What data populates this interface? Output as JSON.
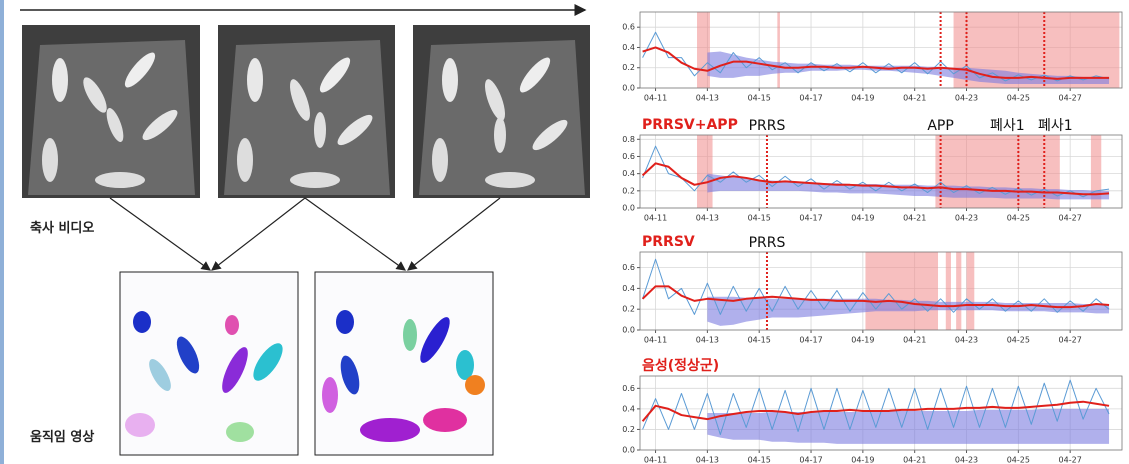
{
  "figure": {
    "labels": [
      "축사 비디오",
      "움직임 영상"
    ]
  },
  "chart_data": [
    {
      "type": "line",
      "x": [
        10.5,
        11,
        11.5,
        12,
        12.5,
        13,
        13.5,
        14,
        14.5,
        15,
        15.5,
        16,
        16.5,
        17,
        17.5,
        18,
        18.5,
        19,
        19.5,
        20,
        20.5,
        21,
        21.5,
        22,
        22.5,
        23,
        23.5,
        24,
        24.5,
        25,
        25.5,
        26,
        26.5,
        27,
        27.5,
        28,
        28.5
      ],
      "series": [
        {
          "color": "#5b9bd5",
          "values": [
            0.3,
            0.55,
            0.3,
            0.3,
            0.12,
            0.25,
            0.15,
            0.35,
            0.2,
            0.3,
            0.18,
            0.25,
            0.15,
            0.25,
            0.17,
            0.24,
            0.16,
            0.25,
            0.15,
            0.24,
            0.15,
            0.25,
            0.14,
            0.26,
            0.14,
            0.22,
            0.1,
            0.15,
            0.07,
            0.13,
            0.08,
            0.13,
            0.07,
            0.12,
            0.08,
            0.12,
            0.09
          ]
        },
        {
          "color": "#e0201b",
          "values": [
            0.36,
            0.4,
            0.35,
            0.25,
            0.19,
            0.17,
            0.22,
            0.26,
            0.26,
            0.24,
            0.22,
            0.2,
            0.2,
            0.21,
            0.21,
            0.2,
            0.2,
            0.21,
            0.2,
            0.19,
            0.2,
            0.2,
            0.19,
            0.2,
            0.19,
            0.18,
            0.14,
            0.11,
            0.1,
            0.1,
            0.11,
            0.1,
            0.09,
            0.1,
            0.1,
            0.1,
            0.1
          ]
        }
      ],
      "band": {
        "color": "#7b7be0",
        "lower": [
          null,
          null,
          null,
          null,
          null,
          0.12,
          0.1,
          0.1,
          0.12,
          0.12,
          0.14,
          0.15,
          0.15,
          0.17,
          0.17,
          0.17,
          0.18,
          0.18,
          0.17,
          0.17,
          0.16,
          0.15,
          0.14,
          0.12,
          0.1,
          0.08,
          0.06,
          0.05,
          0.04,
          0.04,
          0.04,
          0.04,
          0.04,
          0.04,
          0.04,
          0.04,
          0.04
        ],
        "upper": [
          null,
          null,
          null,
          null,
          null,
          0.35,
          0.36,
          0.33,
          0.3,
          0.28,
          0.26,
          0.25,
          0.24,
          0.24,
          0.23,
          0.23,
          0.23,
          0.22,
          0.22,
          0.22,
          0.22,
          0.22,
          0.21,
          0.21,
          0.2,
          0.2,
          0.19,
          0.18,
          0.17,
          0.15,
          0.14,
          0.13,
          0.12,
          0.12,
          0.11,
          0.11,
          0.11
        ]
      },
      "regions": [
        [
          12.6,
          13.1
        ],
        [
          15.7,
          15.8
        ],
        [
          22.5,
          28.9
        ]
      ],
      "events": [
        {
          "x": 22
        },
        {
          "x": 23
        },
        {
          "x": 26
        }
      ],
      "xlim": [
        10.4,
        29
      ],
      "xticks": [
        {
          "value": 11,
          "label": "04-11"
        },
        {
          "value": 13,
          "label": "04-13"
        },
        {
          "value": 15,
          "label": "04-15"
        },
        {
          "value": 17,
          "label": "04-17"
        },
        {
          "value": 19,
          "label": "04-19"
        },
        {
          "value": 21,
          "label": "04-21"
        },
        {
          "value": 23,
          "label": "04-23"
        },
        {
          "value": 25,
          "label": "04-25"
        },
        {
          "value": 27,
          "label": "04-27"
        }
      ],
      "ylim": [
        0,
        0.75
      ],
      "yticks": [
        {
          "value": 0,
          "label": "0.0"
        },
        0.2,
        0.4,
        0.6
      ],
      "grid": true
    },
    {
      "type": "line",
      "title": "PRRSV+APP",
      "x": [
        10.5,
        11,
        11.5,
        12,
        12.5,
        13,
        13.5,
        14,
        14.5,
        15,
        15.5,
        16,
        16.5,
        17,
        17.5,
        18,
        18.5,
        19,
        19.5,
        20,
        20.5,
        21,
        21.5,
        22,
        22.5,
        23,
        23.5,
        24,
        24.5,
        25,
        25.5,
        26,
        26.5,
        27,
        27.5,
        28,
        28.5
      ],
      "series": [
        {
          "color": "#5b9bd5",
          "values": [
            0.35,
            0.72,
            0.4,
            0.35,
            0.2,
            0.38,
            0.3,
            0.42,
            0.3,
            0.38,
            0.25,
            0.37,
            0.25,
            0.34,
            0.22,
            0.32,
            0.22,
            0.3,
            0.2,
            0.3,
            0.2,
            0.28,
            0.18,
            0.3,
            0.18,
            0.26,
            0.17,
            0.24,
            0.16,
            0.23,
            0.15,
            0.22,
            0.14,
            0.2,
            0.13,
            0.2,
            0.22
          ]
        },
        {
          "color": "#e0201b",
          "values": [
            0.38,
            0.52,
            0.48,
            0.35,
            0.27,
            0.3,
            0.35,
            0.37,
            0.35,
            0.32,
            0.3,
            0.31,
            0.3,
            0.29,
            0.28,
            0.27,
            0.27,
            0.26,
            0.26,
            0.25,
            0.24,
            0.24,
            0.23,
            0.24,
            0.22,
            0.22,
            0.21,
            0.2,
            0.2,
            0.19,
            0.19,
            0.18,
            0.18,
            0.17,
            0.16,
            0.16,
            0.17
          ]
        }
      ],
      "band": {
        "color": "#7b7be0",
        "lower": [
          null,
          null,
          null,
          null,
          null,
          0.18,
          0.2,
          0.2,
          0.2,
          0.2,
          0.2,
          0.2,
          0.2,
          0.19,
          0.18,
          0.18,
          0.17,
          0.17,
          0.17,
          0.16,
          0.15,
          0.14,
          0.14,
          0.13,
          0.12,
          0.12,
          0.12,
          0.12,
          0.11,
          0.11,
          0.11,
          0.11,
          0.1,
          0.1,
          0.1,
          0.1,
          0.1
        ],
        "upper": [
          null,
          null,
          null,
          null,
          null,
          0.4,
          0.38,
          0.36,
          0.35,
          0.33,
          0.32,
          0.31,
          0.3,
          0.3,
          0.29,
          0.29,
          0.28,
          0.28,
          0.28,
          0.27,
          0.27,
          0.27,
          0.26,
          0.26,
          0.26,
          0.25,
          0.25,
          0.24,
          0.24,
          0.23,
          0.23,
          0.22,
          0.22,
          0.21,
          0.21,
          0.2,
          0.2
        ]
      },
      "regions": [
        [
          12.6,
          13.2
        ],
        [
          21.8,
          26.6
        ],
        [
          27.8,
          28.2
        ]
      ],
      "events": [
        {
          "x": 15.3,
          "label": "PRRS"
        },
        {
          "x": 22,
          "label": "APP"
        },
        {
          "x": 25,
          "label": "폐사1"
        },
        {
          "x": 26,
          "label": "폐사1"
        }
      ],
      "xlim": [
        10.4,
        29
      ],
      "xticks": [
        {
          "value": 11,
          "label": "04-11"
        },
        {
          "value": 13,
          "label": "04-13"
        },
        {
          "value": 15,
          "label": "04-15"
        },
        {
          "value": 17,
          "label": "04-17"
        },
        {
          "value": 19,
          "label": "04-19"
        },
        {
          "value": 21,
          "label": "04-21"
        },
        {
          "value": 23,
          "label": "04-23"
        },
        {
          "value": 25,
          "label": "04-25"
        },
        {
          "value": 27,
          "label": "04-27"
        }
      ],
      "ylim": [
        0,
        0.85
      ],
      "yticks": [
        {
          "value": 0,
          "label": "0.0"
        },
        0.2,
        0.4,
        0.6,
        0.8
      ],
      "grid": true
    },
    {
      "type": "line",
      "title": "PRRSV",
      "x": [
        10.5,
        11,
        11.5,
        12,
        12.5,
        13,
        13.5,
        14,
        14.5,
        15,
        15.5,
        16,
        16.5,
        17,
        17.5,
        18,
        18.5,
        19,
        19.5,
        20,
        20.5,
        21,
        21.5,
        22,
        22.5,
        23,
        23.5,
        24,
        24.5,
        25,
        25.5,
        26,
        26.5,
        27,
        27.5,
        28,
        28.5
      ],
      "series": [
        {
          "color": "#5b9bd5",
          "values": [
            0.3,
            0.68,
            0.3,
            0.4,
            0.15,
            0.45,
            0.15,
            0.42,
            0.18,
            0.4,
            0.18,
            0.42,
            0.2,
            0.38,
            0.2,
            0.38,
            0.18,
            0.36,
            0.2,
            0.35,
            0.2,
            0.3,
            0.18,
            0.3,
            0.17,
            0.3,
            0.2,
            0.3,
            0.18,
            0.28,
            0.18,
            0.3,
            0.17,
            0.28,
            0.18,
            0.3,
            0.2
          ]
        },
        {
          "color": "#e0201b",
          "values": [
            0.3,
            0.42,
            0.42,
            0.33,
            0.28,
            0.3,
            0.29,
            0.28,
            0.3,
            0.31,
            0.32,
            0.31,
            0.3,
            0.29,
            0.29,
            0.28,
            0.28,
            0.28,
            0.27,
            0.28,
            0.27,
            0.25,
            0.24,
            0.23,
            0.23,
            0.24,
            0.24,
            0.24,
            0.23,
            0.23,
            0.24,
            0.23,
            0.22,
            0.22,
            0.23,
            0.25,
            0.24
          ]
        }
      ],
      "band": {
        "color": "#7b7be0",
        "lower": [
          null,
          null,
          null,
          null,
          null,
          0.08,
          0.04,
          0.05,
          0.08,
          0.1,
          0.12,
          0.12,
          0.12,
          0.13,
          0.14,
          0.15,
          0.16,
          0.17,
          0.18,
          0.18,
          0.18,
          0.18,
          0.19,
          0.19,
          0.19,
          0.19,
          0.19,
          0.19,
          0.18,
          0.18,
          0.18,
          0.18,
          0.17,
          0.17,
          0.17,
          0.16,
          0.16
        ],
        "upper": [
          null,
          null,
          null,
          null,
          null,
          0.32,
          0.32,
          0.32,
          0.31,
          0.31,
          0.3,
          0.3,
          0.3,
          0.3,
          0.3,
          0.3,
          0.3,
          0.3,
          0.3,
          0.29,
          0.29,
          0.28,
          0.28,
          0.27,
          0.27,
          0.27,
          0.27,
          0.27,
          0.26,
          0.26,
          0.26,
          0.26,
          0.26,
          0.26,
          0.25,
          0.25,
          0.25
        ]
      },
      "regions": [
        [
          19.1,
          21.9
        ],
        [
          22.2,
          22.4
        ],
        [
          22.6,
          22.8
        ],
        [
          23,
          23.3
        ]
      ],
      "events": [
        {
          "x": 15.3,
          "label": "PRRS"
        }
      ],
      "xlim": [
        10.4,
        29
      ],
      "xticks": [
        {
          "value": 11,
          "label": "04-11"
        },
        {
          "value": 13,
          "label": "04-13"
        },
        {
          "value": 15,
          "label": "04-15"
        },
        {
          "value": 17,
          "label": "04-17"
        },
        {
          "value": 19,
          "label": "04-19"
        },
        {
          "value": 21,
          "label": "04-21"
        },
        {
          "value": 23,
          "label": "04-23"
        },
        {
          "value": 25,
          "label": "04-25"
        },
        {
          "value": 27,
          "label": "04-27"
        }
      ],
      "ylim": [
        0,
        0.75
      ],
      "yticks": [
        {
          "value": 0,
          "label": "0.0"
        },
        0.2,
        0.4,
        0.6
      ],
      "grid": true
    },
    {
      "type": "line",
      "title": "음성(정상군)",
      "x": [
        10.5,
        11,
        11.5,
        12,
        12.5,
        13,
        13.5,
        14,
        14.5,
        15,
        15.5,
        16,
        16.5,
        17,
        17.5,
        18,
        18.5,
        19,
        19.5,
        20,
        20.5,
        21,
        21.5,
        22,
        22.5,
        23,
        23.5,
        24,
        24.5,
        25,
        25.5,
        26,
        26.5,
        27,
        27.5,
        28,
        28.5
      ],
      "series": [
        {
          "color": "#5b9bd5",
          "values": [
            0.2,
            0.5,
            0.2,
            0.55,
            0.2,
            0.55,
            0.15,
            0.55,
            0.22,
            0.6,
            0.2,
            0.58,
            0.18,
            0.6,
            0.2,
            0.6,
            0.2,
            0.58,
            0.22,
            0.6,
            0.22,
            0.6,
            0.2,
            0.6,
            0.22,
            0.62,
            0.22,
            0.6,
            0.22,
            0.62,
            0.25,
            0.65,
            0.28,
            0.68,
            0.3,
            0.6,
            0.35
          ]
        },
        {
          "color": "#e0201b",
          "values": [
            0.28,
            0.43,
            0.4,
            0.34,
            0.32,
            0.3,
            0.33,
            0.35,
            0.37,
            0.38,
            0.38,
            0.37,
            0.35,
            0.37,
            0.38,
            0.38,
            0.39,
            0.38,
            0.38,
            0.38,
            0.39,
            0.39,
            0.4,
            0.4,
            0.4,
            0.41,
            0.41,
            0.42,
            0.41,
            0.41,
            0.42,
            0.43,
            0.44,
            0.46,
            0.47,
            0.45,
            0.43
          ]
        }
      ],
      "band": {
        "color": "#7b7be0",
        "lower": [
          null,
          null,
          null,
          null,
          null,
          0.15,
          0.12,
          0.1,
          0.1,
          0.1,
          0.08,
          0.08,
          0.07,
          0.07,
          0.07,
          0.06,
          0.06,
          0.06,
          0.06,
          0.06,
          0.06,
          0.06,
          0.06,
          0.06,
          0.06,
          0.06,
          0.06,
          0.06,
          0.06,
          0.06,
          0.06,
          0.06,
          0.06,
          0.06,
          0.06,
          0.06,
          0.06
        ],
        "upper": [
          null,
          null,
          null,
          null,
          null,
          0.36,
          0.36,
          0.36,
          0.36,
          0.36,
          0.37,
          0.37,
          0.37,
          0.37,
          0.37,
          0.37,
          0.37,
          0.37,
          0.37,
          0.38,
          0.38,
          0.38,
          0.38,
          0.38,
          0.38,
          0.38,
          0.39,
          0.39,
          0.39,
          0.39,
          0.39,
          0.4,
          0.4,
          0.4,
          0.4,
          0.4,
          0.4
        ]
      },
      "regions": [],
      "events": [],
      "xlim": [
        10.4,
        29
      ],
      "xticks": [
        {
          "value": 11,
          "label": "04-11"
        },
        {
          "value": 13,
          "label": "04-13"
        },
        {
          "value": 15,
          "label": "04-15"
        },
        {
          "value": 17,
          "label": "04-17"
        },
        {
          "value": 19,
          "label": "04-19"
        },
        {
          "value": 21,
          "label": "04-21"
        },
        {
          "value": 23,
          "label": "04-23"
        },
        {
          "value": 25,
          "label": "04-25"
        },
        {
          "value": 27,
          "label": "04-27"
        }
      ],
      "ylim": [
        0,
        0.72
      ],
      "yticks": [
        {
          "value": 0,
          "label": "0.0"
        },
        0.2,
        0.4,
        0.6
      ],
      "grid": true
    }
  ]
}
